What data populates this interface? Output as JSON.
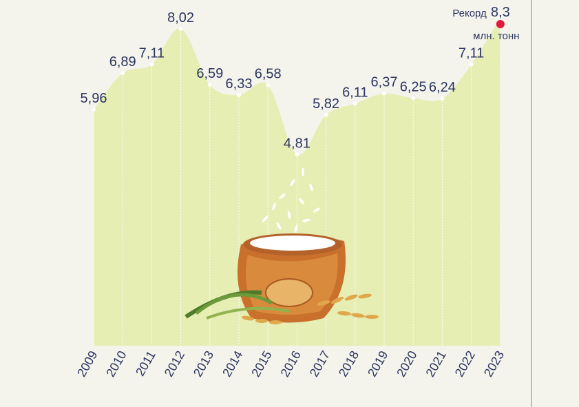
{
  "chart_data": {
    "type": "area",
    "x": [
      "2009",
      "2010",
      "2011",
      "2012",
      "2013",
      "2014",
      "2015",
      "2016",
      "2017",
      "2018",
      "2019",
      "2020",
      "2021",
      "2022",
      "2023"
    ],
    "values": [
      5.96,
      6.89,
      7.11,
      8.02,
      6.59,
      6.33,
      6.58,
      4.81,
      5.82,
      6.11,
      6.37,
      6.25,
      6.24,
      7.11,
      8.3
    ],
    "value_labels": [
      "5,96",
      "6,89",
      "7,11",
      "8,02",
      "6,59",
      "6,33",
      "6,58",
      "4,81",
      "5,82",
      "6,11",
      "6,37",
      "6,25",
      "6,24",
      "7,11",
      "8,3"
    ],
    "record_label": "Рекорд",
    "unit_label": "млн. тонн",
    "grid": false,
    "colors": {
      "area": "#e6eeb4",
      "text": "#2d3560",
      "record_dot": "#e4173c",
      "background": "#f4f4ec"
    }
  },
  "decoration": {
    "illustration": "rice-sack-icon"
  }
}
